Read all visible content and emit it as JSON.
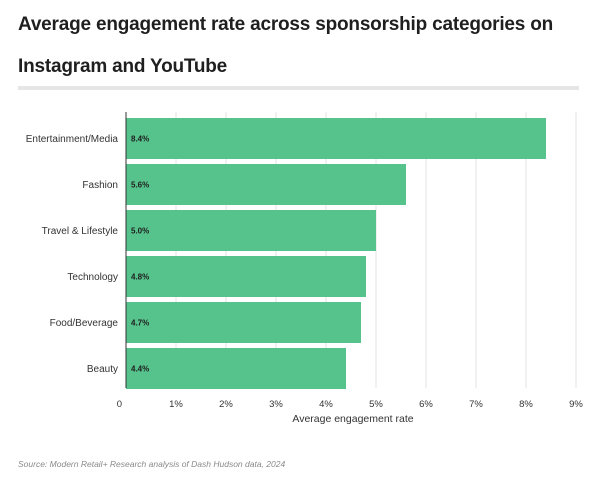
{
  "header": {
    "title": "Average engagement rate across sponsorship categories on Instagram and YouTube"
  },
  "footer": {
    "source": "Source: Modern Retail+ Research analysis of Dash Hudson data, 2024"
  },
  "chart_data": {
    "type": "bar",
    "orientation": "horizontal",
    "categories": [
      "Entertainment/Media",
      "Fashion",
      "Travel & Lifestyle",
      "Technology",
      "Food/Beverage",
      "Beauty"
    ],
    "values": [
      8.4,
      5.6,
      5.0,
      4.8,
      4.7,
      4.4
    ],
    "data_labels": [
      "8.4%",
      "5.6%",
      "5.0%",
      "4.8%",
      "4.7%",
      "4.4%"
    ],
    "xlim": [
      0,
      9
    ],
    "ticks": [
      "0",
      "1%",
      "2%",
      "3%",
      "4%",
      "5%",
      "6%",
      "7%",
      "8%",
      "9%"
    ],
    "xlabel": "Average engagement rate",
    "ylabel": "",
    "bar_color": "#57c38c",
    "grid": true
  }
}
